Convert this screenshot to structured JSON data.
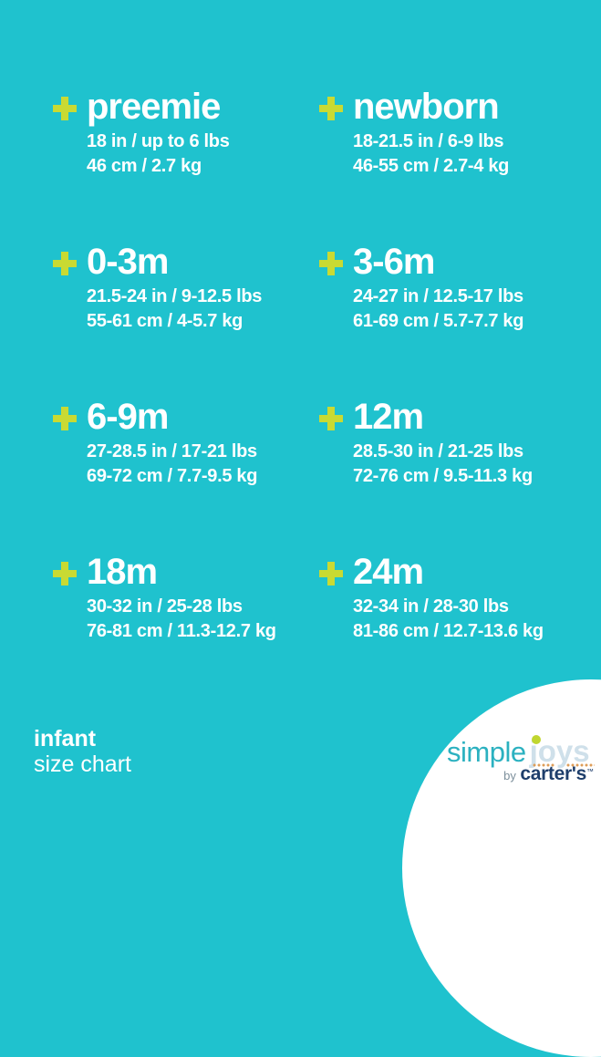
{
  "theme": {
    "colors": {
      "bg": "#1fc2ce",
      "plus": "#c9da33",
      "text": "#ffffff",
      "circle": "#ffffff",
      "logo-simple": "#2bb1c0",
      "logo-joys": "#cfe0ea",
      "logo-dot": "#c0d62f",
      "logo-dots": "#dd9d58",
      "logo-carters": "#1e3e6b",
      "logo-by": "#7d909c"
    }
  },
  "sizes": [
    {
      "name": "preemie",
      "imperial": "18 in / up to 6 lbs",
      "metric": "46 cm / 2.7 kg"
    },
    {
      "name": "newborn",
      "imperial": "18-21.5 in / 6-9 lbs",
      "metric": "46-55 cm / 2.7-4 kg"
    },
    {
      "name": "0-3m",
      "imperial": "21.5-24 in / 9-12.5 lbs",
      "metric": "55-61 cm / 4-5.7 kg"
    },
    {
      "name": "3-6m",
      "imperial": "24-27 in / 12.5-17 lbs",
      "metric": "61-69 cm / 5.7-7.7 kg"
    },
    {
      "name": "6-9m",
      "imperial": "27-28.5 in / 17-21 lbs",
      "metric": "69-72 cm / 7.7-9.5 kg"
    },
    {
      "name": "12m",
      "imperial": "28.5-30 in / 21-25 lbs",
      "metric": "72-76 cm / 9.5-11.3 kg"
    },
    {
      "name": "18m",
      "imperial": "30-32 in / 25-28 lbs",
      "metric": "76-81 cm / 11.3-12.7 kg"
    },
    {
      "name": "24m",
      "imperial": "32-34 in / 28-30 lbs",
      "metric": "81-86 cm / 12.7-13.6 kg"
    }
  ],
  "footer": {
    "category": "infant",
    "label": "size chart"
  },
  "logo": {
    "simple": "simple",
    "joys": "joys",
    "by": "by",
    "brand": "carter's",
    "tm": "™"
  }
}
